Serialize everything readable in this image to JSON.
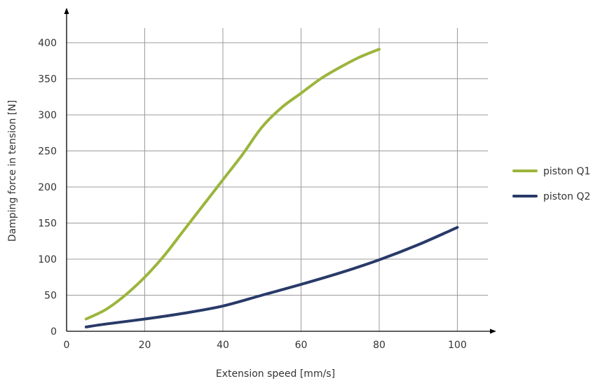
{
  "chart_data": {
    "type": "line",
    "title": "",
    "xlabel": "Extension speed [mm/s]",
    "ylabel": "Damping force in tension [N]",
    "xlim": [
      0,
      110
    ],
    "ylim": [
      0,
      430
    ],
    "xticks": [
      0,
      20,
      40,
      60,
      80,
      100
    ],
    "yticks": [
      0,
      50,
      100,
      150,
      200,
      250,
      300,
      350,
      400
    ],
    "grid": true,
    "legend_position": "right",
    "series": [
      {
        "name": "piston Q1",
        "color": "#9bb53c",
        "x": [
          5,
          10,
          15,
          20,
          25,
          30,
          35,
          40,
          45,
          50,
          55,
          60,
          65,
          70,
          75,
          80
        ],
        "y": [
          17,
          30,
          50,
          75,
          105,
          140,
          175,
          210,
          245,
          283,
          310,
          330,
          350,
          366,
          380,
          391
        ]
      },
      {
        "name": "piston Q2",
        "color": "#283a68",
        "x": [
          5,
          10,
          20,
          30,
          40,
          50,
          60,
          70,
          80,
          90,
          100
        ],
        "y": [
          6,
          10,
          17,
          25,
          35,
          50,
          65,
          81,
          99,
          120,
          144
        ]
      }
    ]
  }
}
